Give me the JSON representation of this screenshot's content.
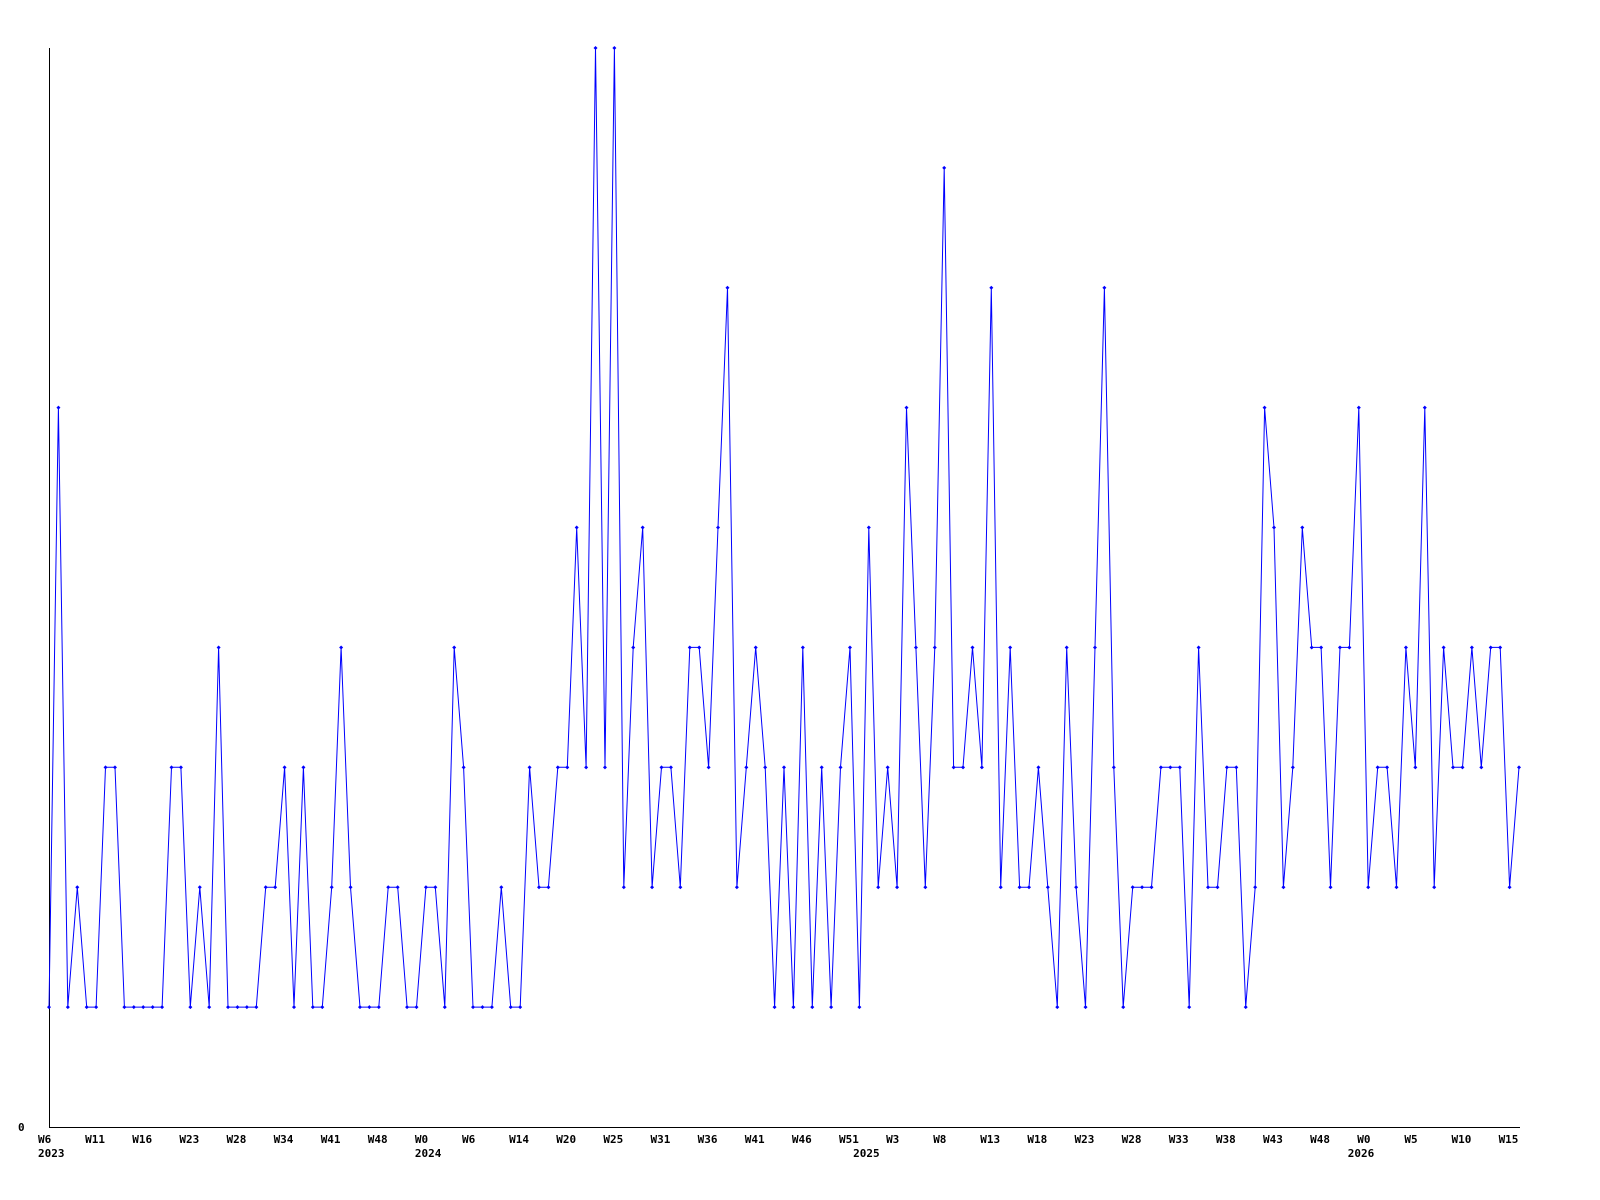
{
  "chart_data": {
    "type": "line",
    "title": "",
    "xlabel": "",
    "ylabel": "",
    "ylim": [
      0,
      9
    ],
    "y_tick_labels": [
      "0"
    ],
    "x_tick_labels": [
      "W6",
      "W11",
      "W16",
      "W23",
      "W28",
      "W34",
      "W41",
      "W48",
      "W0",
      "W6",
      "W14",
      "W20",
      "W25",
      "W31",
      "W36",
      "W41",
      "W46",
      "W51",
      "W3",
      "W8",
      "W13",
      "W18",
      "W23",
      "W28",
      "W33",
      "W38",
      "W43",
      "W48",
      "W0",
      "W5",
      "W10",
      "W15"
    ],
    "year_labels": [
      "2023",
      "2024",
      "2025",
      "2026"
    ],
    "grid": false,
    "legend": "none",
    "series_color": "#0000ff",
    "values": [
      1,
      6,
      1,
      2,
      1,
      1,
      3,
      3,
      1,
      1,
      1,
      1,
      1,
      3,
      3,
      1,
      2,
      1,
      4,
      1,
      1,
      1,
      1,
      2,
      2,
      3,
      1,
      3,
      1,
      1,
      2,
      4,
      2,
      1,
      1,
      1,
      2,
      2,
      1,
      1,
      2,
      2,
      1,
      4,
      3,
      1,
      1,
      1,
      2,
      1,
      1,
      3,
      2,
      2,
      3,
      3,
      5,
      3,
      9,
      3,
      9,
      2,
      4,
      5,
      2,
      3,
      3,
      2,
      4,
      4,
      3,
      5,
      7,
      2,
      3,
      4,
      3,
      1,
      3,
      1,
      4,
      1,
      3,
      1,
      3,
      4,
      1,
      5,
      2,
      3,
      2,
      6,
      4,
      2,
      4,
      8,
      3,
      3,
      4,
      3,
      7,
      2,
      4,
      2,
      2,
      3,
      2,
      1,
      4,
      2,
      1,
      4,
      7,
      3,
      1,
      2,
      2,
      2,
      3,
      3,
      3,
      1,
      4,
      2,
      2,
      3,
      3,
      1,
      2,
      6,
      5,
      2,
      3,
      5,
      4,
      4,
      2,
      4,
      4,
      6,
      2,
      3,
      3,
      2,
      4,
      3,
      6,
      2,
      4,
      3,
      3,
      4,
      3,
      4,
      4,
      2,
      3
    ]
  }
}
